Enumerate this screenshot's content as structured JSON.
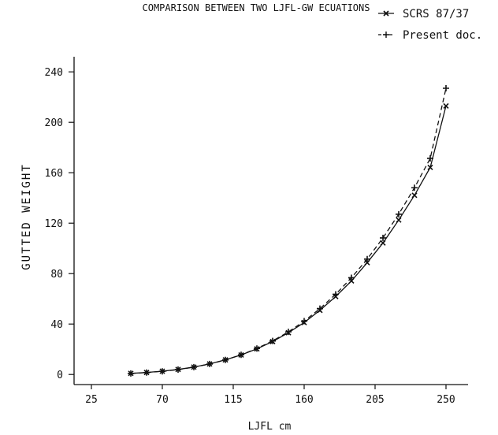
{
  "chart_data": {
    "type": "line",
    "title": "COMPARISON BETWEEN TWO LJFL-GW ECUATIONS",
    "xlabel": "LJFL cm",
    "ylabel": "GUTTED WEIGHT",
    "xlim": [
      14,
      264
    ],
    "ylim": [
      -8,
      252
    ],
    "x_ticks": [
      25,
      70,
      115,
      160,
      205,
      250
    ],
    "y_ticks": [
      0,
      40,
      80,
      120,
      160,
      200,
      240
    ],
    "grid": false,
    "legend_position": "top-right",
    "series": [
      {
        "name": "SCRS 87/37",
        "line_style": "solid",
        "marker": "x",
        "x": [
          50,
          60,
          70,
          80,
          90,
          100,
          110,
          120,
          130,
          140,
          150,
          160,
          170,
          180,
          190,
          200,
          210,
          220,
          230,
          240,
          250
        ],
        "y": [
          0.9,
          1.6,
          2.6,
          4.0,
          5.9,
          8.4,
          11.6,
          15.5,
          20.3,
          26.1,
          33.1,
          41.2,
          50.9,
          61.8,
          74.2,
          88.7,
          104.3,
          122.5,
          142.1,
          164.2,
          213
        ]
      },
      {
        "name": "Present doc.",
        "line_style": "dashed",
        "marker": "+",
        "x": [
          50,
          60,
          70,
          80,
          90,
          100,
          110,
          120,
          130,
          140,
          150,
          160,
          170,
          180,
          190,
          200,
          210,
          220,
          230,
          240,
          250
        ],
        "y": [
          0.8,
          1.5,
          2.5,
          3.9,
          5.8,
          8.3,
          11.5,
          15.6,
          20.6,
          26.6,
          33.8,
          42.3,
          52.2,
          63.6,
          76.7,
          91.5,
          108.3,
          127.1,
          148.1,
          171.4,
          227
        ]
      }
    ]
  }
}
